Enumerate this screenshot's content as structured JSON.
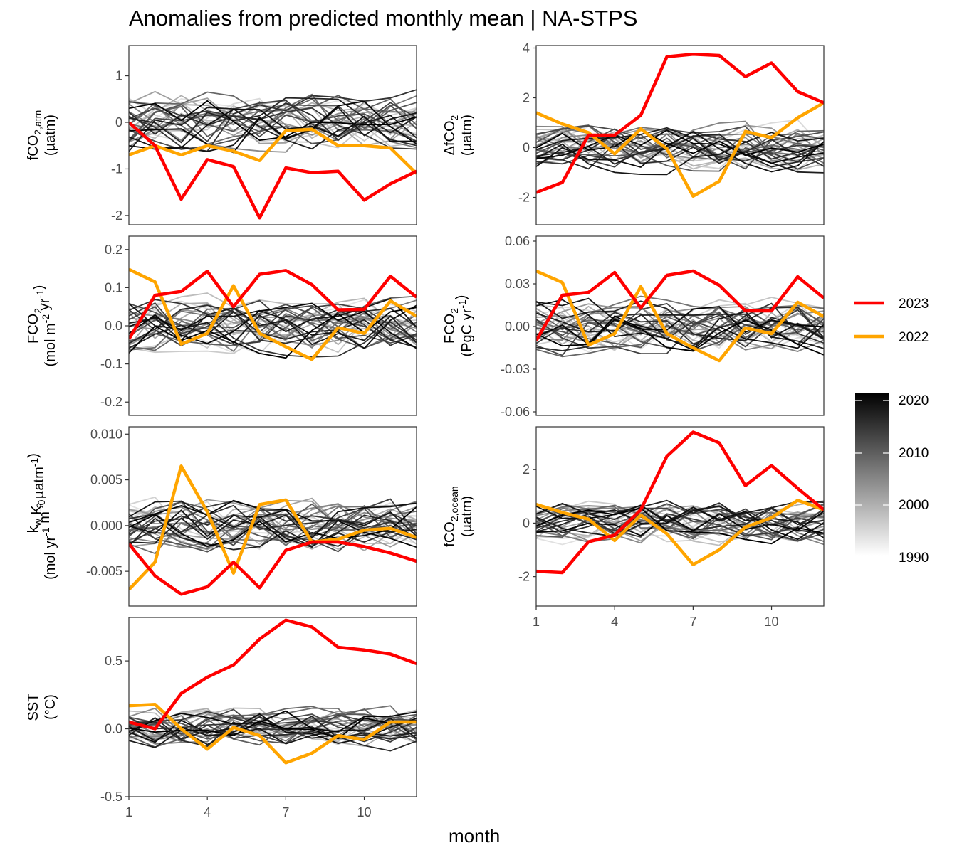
{
  "title": "Anomalies from predicted monthly mean | NA-STPS",
  "x_axis_title": "month",
  "legend": {
    "lines": [
      {
        "label": "2023",
        "color": "#ff0000"
      },
      {
        "label": "2022",
        "color": "#ffa500"
      }
    ],
    "gradient": {
      "ticks": [
        "2020",
        "2010",
        "2000",
        "1990"
      ],
      "low_color": "#ffffff",
      "high_color": "#000000"
    }
  },
  "colors": {
    "y2023": "#ff0000",
    "y2022": "#ffa500"
  },
  "chart_data": [
    {
      "type": "line",
      "id": "fco2atm",
      "ylabel": {
        "parts": [
          [
            "fCO",
            "n"
          ],
          [
            "2,atm",
            "sub"
          ]
        ],
        "unit": "(µatm)"
      },
      "ylim": [
        -2.2,
        1.65
      ],
      "yticks": [
        -2,
        -1,
        0,
        1
      ],
      "ytick_labels": [
        "-2",
        "-1",
        "0",
        "1"
      ],
      "xlim": [
        1,
        12
      ],
      "xticks": [
        1,
        4,
        7,
        10
      ],
      "xtick_labels": [
        "1",
        "4",
        "7",
        "10"
      ],
      "show_xticks": false,
      "series": [
        {
          "name": "2023",
          "values": [
            0.0,
            -0.5,
            -1.65,
            -0.8,
            -0.95,
            -2.05,
            -0.98,
            -1.08,
            -1.05,
            -1.67,
            -1.32,
            -1.05
          ]
        },
        {
          "name": "2022",
          "values": [
            -0.7,
            -0.5,
            -0.7,
            -0.5,
            -0.62,
            -0.82,
            -0.18,
            -0.15,
            -0.5,
            -0.5,
            -0.55,
            -1.1
          ]
        }
      ],
      "background_spread": 0.6
    },
    {
      "type": "line",
      "id": "dfco2",
      "ylabel": {
        "parts": [
          [
            "ΔfCO",
            "n"
          ],
          [
            "2",
            "sub"
          ]
        ],
        "unit": "(µatm)"
      },
      "ylim": [
        -3.1,
        4.1
      ],
      "yticks": [
        -2,
        0,
        2,
        4
      ],
      "ytick_labels": [
        "-2",
        "0",
        "2",
        "4"
      ],
      "xlim": [
        1,
        12
      ],
      "xticks": [
        1,
        4,
        7,
        10
      ],
      "xtick_labels": [
        "1",
        "4",
        "7",
        "10"
      ],
      "show_xticks": false,
      "series": [
        {
          "name": "2023",
          "values": [
            -1.8,
            -1.4,
            0.5,
            0.5,
            1.3,
            3.65,
            3.75,
            3.7,
            2.85,
            3.4,
            2.25,
            1.8
          ]
        },
        {
          "name": "2022",
          "values": [
            1.4,
            0.95,
            0.6,
            -0.25,
            0.75,
            -0.05,
            -1.95,
            -1.35,
            0.65,
            0.4,
            1.2,
            1.8
          ]
        }
      ],
      "background_spread": 0.9
    },
    {
      "type": "line",
      "id": "fco2flux",
      "ylabel": {
        "parts": [
          [
            "FCO",
            "n"
          ],
          [
            "2",
            "sub"
          ]
        ],
        "unit_parts": [
          [
            "(mol m",
            "n"
          ],
          [
            "-2",
            "sup"
          ],
          [
            " yr",
            "n"
          ],
          [
            "-1",
            "sup"
          ],
          [
            ")",
            "n"
          ]
        ]
      },
      "ylim": [
        -0.235,
        0.235
      ],
      "yticks": [
        -0.2,
        -0.1,
        0.0,
        0.1,
        0.2
      ],
      "ytick_labels": [
        "-0.2",
        "-0.1",
        "0.0",
        "0.1",
        "0.2"
      ],
      "xlim": [
        1,
        12
      ],
      "xticks": [
        1,
        4,
        7,
        10
      ],
      "xtick_labels": [
        "1",
        "4",
        "7",
        "10"
      ],
      "show_xticks": false,
      "series": [
        {
          "name": "2023",
          "values": [
            -0.035,
            0.08,
            0.09,
            0.143,
            0.05,
            0.135,
            0.145,
            0.108,
            0.042,
            0.043,
            0.13,
            0.075
          ]
        },
        {
          "name": "2022",
          "values": [
            0.148,
            0.115,
            -0.048,
            -0.02,
            0.105,
            -0.02,
            -0.055,
            -0.088,
            -0.005,
            -0.02,
            0.065,
            0.025
          ]
        }
      ],
      "background_spread": 0.07
    },
    {
      "type": "line",
      "id": "fco2pg",
      "ylabel": {
        "parts": [
          [
            "FCO",
            "n"
          ],
          [
            "2",
            "sub"
          ]
        ],
        "unit_parts": [
          [
            "(PgC yr",
            "n"
          ],
          [
            "-1",
            "sup"
          ],
          [
            ")",
            "n"
          ]
        ]
      },
      "ylim": [
        -0.0625,
        0.0635
      ],
      "yticks": [
        -0.06,
        -0.03,
        0.0,
        0.03,
        0.06
      ],
      "ytick_labels": [
        "-0.06",
        "-0.03",
        "0.00",
        "0.03",
        "0.06"
      ],
      "xlim": [
        1,
        12
      ],
      "xticks": [
        1,
        4,
        7,
        10
      ],
      "xtick_labels": [
        "1",
        "4",
        "7",
        "10"
      ],
      "show_xticks": false,
      "series": [
        {
          "name": "2023",
          "values": [
            -0.01,
            0.022,
            0.024,
            0.038,
            0.013,
            0.036,
            0.039,
            0.029,
            0.011,
            0.011,
            0.035,
            0.02
          ]
        },
        {
          "name": "2022",
          "values": [
            0.039,
            0.031,
            -0.013,
            -0.005,
            0.028,
            -0.005,
            -0.015,
            -0.024,
            -0.001,
            -0.005,
            0.017,
            0.007
          ]
        }
      ],
      "background_spread": 0.018
    },
    {
      "type": "line",
      "id": "kwk0",
      "ylabel": {
        "parts": [
          [
            "k",
            "n"
          ],
          [
            "w",
            "sub"
          ],
          [
            " K",
            "n"
          ],
          [
            "0",
            "sub"
          ]
        ],
        "unit_parts": [
          [
            "(mol yr",
            "n"
          ],
          [
            "-1",
            "sup"
          ],
          [
            " m",
            "n"
          ],
          [
            "-2",
            "sup"
          ],
          [
            " µatm",
            "n"
          ],
          [
            "-1",
            "sup"
          ],
          [
            ")",
            "n"
          ]
        ]
      },
      "ylim": [
        -0.0088,
        0.0108
      ],
      "yticks": [
        -0.005,
        0.0,
        0.005,
        0.01
      ],
      "ytick_labels": [
        "-0.005",
        "0.000",
        "0.005",
        "0.010"
      ],
      "xlim": [
        1,
        12
      ],
      "xticks": [
        1,
        4,
        7,
        10
      ],
      "xtick_labels": [
        "1",
        "4",
        "7",
        "10"
      ],
      "show_xticks": false,
      "series": [
        {
          "name": "2023",
          "values": [
            -0.002,
            -0.0055,
            -0.0075,
            -0.0067,
            -0.004,
            -0.0068,
            -0.0027,
            -0.0018,
            -0.0018,
            -0.0023,
            -0.003,
            -0.0039
          ]
        },
        {
          "name": "2022",
          "values": [
            -0.007,
            -0.004,
            0.0065,
            0.0015,
            -0.0052,
            0.0023,
            0.0028,
            -0.0018,
            -0.0015,
            -0.0005,
            -0.0003,
            -0.0013
          ]
        }
      ],
      "background_spread": 0.0028
    },
    {
      "type": "line",
      "id": "fco2ocean",
      "ylabel": {
        "parts": [
          [
            "fCO",
            "n"
          ],
          [
            "2,ocean",
            "sub"
          ]
        ],
        "unit": "(µatm)"
      },
      "ylim": [
        -3.1,
        3.6
      ],
      "yticks": [
        -2,
        0,
        2
      ],
      "ytick_labels": [
        "-2",
        "0",
        "2"
      ],
      "xlim": [
        1,
        12
      ],
      "xticks": [
        1,
        4,
        7,
        10
      ],
      "xtick_labels": [
        "1",
        "4",
        "7",
        "10"
      ],
      "show_xticks": true,
      "series": [
        {
          "name": "2023",
          "values": [
            -1.8,
            -1.85,
            -0.7,
            -0.45,
            0.5,
            2.5,
            3.4,
            3.0,
            1.4,
            2.15,
            1.3,
            0.5
          ]
        },
        {
          "name": "2022",
          "values": [
            0.7,
            0.4,
            0.15,
            -0.65,
            0.3,
            -0.4,
            -1.55,
            -1.0,
            -0.15,
            0.2,
            0.85,
            0.5
          ]
        }
      ],
      "background_spread": 0.75
    },
    {
      "type": "line",
      "id": "sst",
      "ylabel": {
        "parts": [
          [
            "SST",
            "n"
          ]
        ],
        "unit": "(°C)"
      },
      "ylim": [
        -0.5,
        0.82
      ],
      "yticks": [
        -0.5,
        0.0,
        0.5
      ],
      "ytick_labels": [
        "-0.5",
        "0.0",
        "0.5"
      ],
      "xlim": [
        1,
        12
      ],
      "xticks": [
        1,
        4,
        7,
        10
      ],
      "xtick_labels": [
        "1",
        "4",
        "7",
        "10"
      ],
      "show_xticks": true,
      "series": [
        {
          "name": "2023",
          "values": [
            0.05,
            0.0,
            0.26,
            0.38,
            0.47,
            0.66,
            0.8,
            0.75,
            0.6,
            0.58,
            0.55,
            0.48
          ]
        },
        {
          "name": "2022",
          "values": [
            0.17,
            0.18,
            0.0,
            -0.15,
            0.01,
            -0.05,
            -0.25,
            -0.18,
            -0.05,
            -0.08,
            0.05,
            0.05
          ]
        }
      ],
      "background_spread": 0.14
    }
  ]
}
